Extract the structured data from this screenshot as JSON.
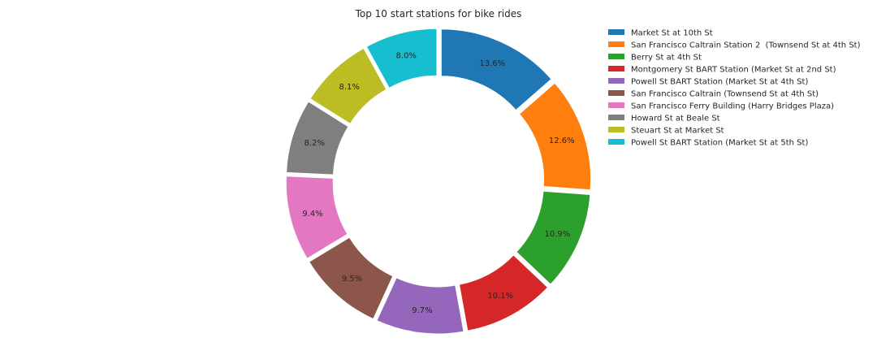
{
  "chart_data": {
    "type": "pie",
    "subtype": "donut",
    "title": "Top 10 start stations for bike rides",
    "legend_position": "top-right",
    "start_angle_deg": 90,
    "direction": "clockwise",
    "series": [
      {
        "label": "Market St at 10th St",
        "value": 13.6,
        "display": "13.6%",
        "color": "#1f77b4"
      },
      {
        "label": "San Francisco Caltrain Station 2  (Townsend St at 4th St)",
        "value": 12.6,
        "display": "12.6%",
        "color": "#ff7f0e"
      },
      {
        "label": "Berry St at 4th St",
        "value": 10.9,
        "display": "10.9%",
        "color": "#2ca02c"
      },
      {
        "label": "Montgomery St BART Station (Market St at 2nd St)",
        "value": 10.1,
        "display": "10.1%",
        "color": "#d62728"
      },
      {
        "label": "Powell St BART Station (Market St at 4th St)",
        "value": 9.7,
        "display": "9.7%",
        "color": "#9467bd"
      },
      {
        "label": "San Francisco Caltrain (Townsend St at 4th St)",
        "value": 9.5,
        "display": "9.5%",
        "color": "#8c564b"
      },
      {
        "label": "San Francisco Ferry Building (Harry Bridges Plaza)",
        "value": 9.4,
        "display": "9.4%",
        "color": "#e377c2"
      },
      {
        "label": "Howard St at Beale St",
        "value": 8.2,
        "display": "8.2%",
        "color": "#7f7f7f"
      },
      {
        "label": "Steuart St at Market St",
        "value": 8.1,
        "display": "8.1%",
        "color": "#bcbd22"
      },
      {
        "label": "Powell St BART Station (Market St at 5th St)",
        "value": 8.0,
        "display": "8.0%",
        "color": "#17becf"
      }
    ]
  }
}
